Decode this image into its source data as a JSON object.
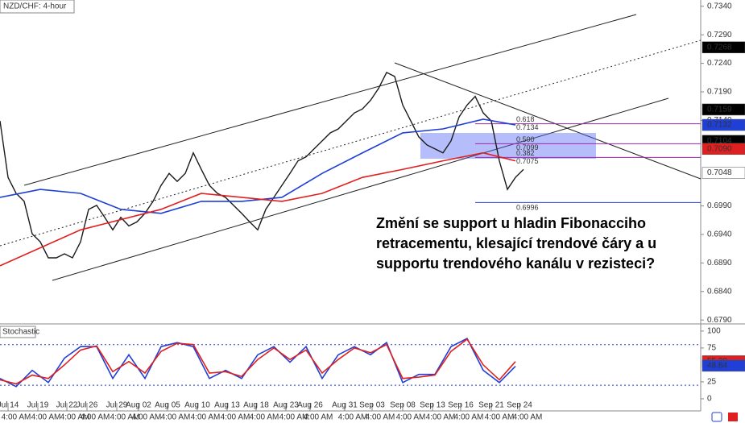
{
  "chart_data": [
    {
      "type": "line",
      "title": "NZD/CHF: 4-hour",
      "x": [
        0,
        1,
        2,
        3,
        4,
        5,
        6,
        7,
        8,
        9,
        10,
        11,
        12,
        13,
        14,
        15,
        16,
        17,
        18,
        19,
        20,
        21,
        22,
        23,
        24,
        25,
        26,
        27,
        28,
        29,
        30,
        31,
        32,
        33,
        34,
        35,
        36,
        37,
        38,
        39,
        40,
        41,
        42,
        43,
        44,
        45,
        46,
        47,
        48,
        49,
        50,
        51,
        52,
        53,
        54,
        55,
        56,
        57,
        58,
        59,
        60,
        61,
        62,
        63,
        64,
        65
      ],
      "series": [
        {
          "color": "#1a1a1a",
          "values": [
            0.7139,
            0.704,
            0.7012,
            0.6998,
            0.6941,
            0.6927,
            0.6899,
            0.6899,
            0.6906,
            0.6899,
            0.6927,
            0.6984,
            0.6991,
            0.697,
            0.6948,
            0.697,
            0.6955,
            0.6962,
            0.6977,
            0.6998,
            0.7026,
            0.7047,
            0.7033,
            0.7047,
            0.7083,
            0.7054,
            0.7026,
            0.7012,
            0.7005,
            0.6991,
            0.6977,
            0.6962,
            0.6948,
            0.6984,
            0.7005,
            0.7026,
            0.7047,
            0.7069,
            0.7076,
            0.709,
            0.7104,
            0.7118,
            0.7125,
            0.7139,
            0.7153,
            0.716,
            0.7175,
            0.7196,
            0.7224,
            0.7217,
            0.7167,
            0.7139,
            0.7111,
            0.7097,
            0.709,
            0.7083,
            0.7104,
            0.7146,
            0.7167,
            0.7182,
            0.7153,
            0.7139,
            0.7069,
            0.7019,
            0.704,
            0.7054
          ]
        },
        {
          "color": "#1f3fd6",
          "x": [
            0,
            5,
            10,
            15,
            20,
            25,
            30,
            35,
            40,
            45,
            50,
            55,
            60,
            64
          ],
          "values": [
            0.7005,
            0.7019,
            0.7012,
            0.6984,
            0.6977,
            0.6998,
            0.6998,
            0.7005,
            0.7047,
            0.7083,
            0.7118,
            0.7125,
            0.7142,
            0.7132
          ]
        },
        {
          "color": "#e02020",
          "x": [
            0,
            10,
            20,
            25,
            30,
            35,
            40,
            45,
            50,
            55,
            60,
            64
          ],
          "values": [
            0.6885,
            0.6948,
            0.6984,
            0.7012,
            0.7005,
            0.6998,
            0.7012,
            0.704,
            0.7054,
            0.7069,
            0.7083,
            0.7069
          ]
        }
      ],
      "xlim": [
        0,
        87
      ],
      "ylim": [
        0.6786,
        0.7351
      ],
      "yticks": [
        {
          "value": 0.734,
          "label": "0.7340"
        },
        {
          "value": 0.729,
          "label": "0.7290"
        },
        {
          "value": 0.724,
          "label": "0.7240"
        },
        {
          "value": 0.719,
          "label": "0.7190"
        },
        {
          "value": 0.714,
          "label": "0.7140"
        },
        {
          "value": 0.699,
          "label": "0.6990"
        },
        {
          "value": 0.694,
          "label": "0.6940"
        },
        {
          "value": 0.689,
          "label": "0.6890"
        },
        {
          "value": 0.684,
          "label": "0.6840"
        },
        {
          "value": 0.679,
          "label": "0.6790"
        }
      ],
      "xticks": [
        {
          "value": 1,
          "label": "Jul 14"
        },
        {
          "value": 4.7,
          "label": "Jul 19"
        },
        {
          "value": 8.3,
          "label": "Jul 22"
        },
        {
          "value": 10.8,
          "label": "Jul 26"
        },
        {
          "value": 14.5,
          "label": "Jul 29"
        },
        {
          "value": 17.2,
          "label": "Aug 02"
        },
        {
          "value": 20.8,
          "label": "Aug 05"
        },
        {
          "value": 24.5,
          "label": "Aug 10"
        },
        {
          "value": 28.2,
          "label": "Aug 13"
        },
        {
          "value": 31.8,
          "label": "Aug 18"
        },
        {
          "value": 35.5,
          "label": "Aug 23"
        },
        {
          "value": 38.5,
          "label": "Aug 26"
        },
        {
          "value": 42.8,
          "label": "Aug 31"
        },
        {
          "value": 46.2,
          "label": "Sep 03"
        },
        {
          "value": 50,
          "label": "Sep 08"
        },
        {
          "value": 53.7,
          "label": "Sep 13"
        },
        {
          "value": 57.2,
          "label": "Sep 16"
        },
        {
          "value": 61,
          "label": "Sep 21"
        },
        {
          "value": 64.5,
          "label": "Sep 24"
        }
      ],
      "time_labels": [
        "4:00 AM",
        "4:00 AM",
        "4:00 AM",
        "4:00 AM",
        "4:00 AM",
        "4:00 AM",
        "4:00 AM",
        "4:00 AM",
        "4:00 AM",
        "4:00 AM",
        "4:00 AM",
        "4:00 AM",
        "4:00 AM",
        "4:00 AM",
        "4:00 AM",
        "4:00 AM",
        "4:00 AM",
        "4:00 AM",
        "4:00 AM"
      ],
      "price_markers": [
        {
          "value": 0.7268,
          "label": "0.7268",
          "color": "#000000",
          "text_color": "#ffffff"
        },
        {
          "value": 0.7159,
          "label": "0.7159",
          "color": "#000000",
          "text_color": "#ffffff"
        },
        {
          "value": 0.7132,
          "label": "0.7132",
          "color": "#1f3fd6",
          "text_color": "#ffffff"
        },
        {
          "value": 0.7104,
          "label": "0.7104",
          "color": "#000000",
          "text_color": "#ffffff"
        },
        {
          "value": 0.709,
          "label": "0.7090",
          "color": "#e02020",
          "text_color": "#ffffff"
        },
        {
          "value": 0.7048,
          "label": "0.7048",
          "color": "#ffffff",
          "text_color": "#000000"
        }
      ],
      "fib_levels": [
        {
          "level": "0.618",
          "price": {
            "value": 0.7134,
            "label": "0.7134"
          }
        },
        {
          "level": "0.500",
          "price": {
            "value": 0.7099,
            "label": "0.7099"
          }
        },
        {
          "level": "0.382",
          "price": {
            "value": 0.7075,
            "label": "0.7075"
          }
        }
      ],
      "support": {
        "value": 0.6996,
        "label": "0.6996"
      },
      "annotation": [
        "Změní se support u hladin Fibonacciho",
        "retracementu, klesající trendové čáry a u",
        "supportu trendového kanálu v rezisteci?"
      ]
    },
    {
      "type": "line",
      "title": "Stochastic",
      "x": [
        0,
        2,
        4,
        6,
        8,
        10,
        12,
        14,
        16,
        18,
        20,
        22,
        24,
        26,
        28,
        30,
        32,
        34,
        36,
        38,
        40,
        42,
        44,
        46,
        48,
        50,
        52,
        54,
        56,
        58,
        60,
        62,
        64
      ],
      "series": [
        {
          "color": "#1f3fd6",
          "values": [
            30,
            18,
            42,
            24,
            60,
            77,
            77,
            30,
            65,
            30,
            77,
            83,
            77,
            30,
            42,
            30,
            65,
            77,
            54,
            77,
            30,
            65,
            77,
            65,
            83,
            24,
            36,
            36,
            77,
            89,
            42,
            24,
            48
          ]
        },
        {
          "color": "#e02020",
          "values": [
            28,
            22,
            35,
            30,
            50,
            72,
            78,
            40,
            55,
            38,
            70,
            82,
            80,
            38,
            40,
            33,
            58,
            75,
            58,
            72,
            38,
            58,
            75,
            68,
            80,
            30,
            32,
            35,
            70,
            88,
            50,
            28,
            55
          ]
        }
      ],
      "xlim": [
        0,
        87
      ],
      "ylim": [
        -6,
        107
      ],
      "yticks": [
        100,
        75,
        25,
        0
      ],
      "levels": [
        80,
        20
      ],
      "markers": [
        {
          "value": 55.38,
          "color": "#e02020"
        },
        {
          "value": 48.84,
          "color": "#1f3fd6"
        }
      ]
    }
  ]
}
